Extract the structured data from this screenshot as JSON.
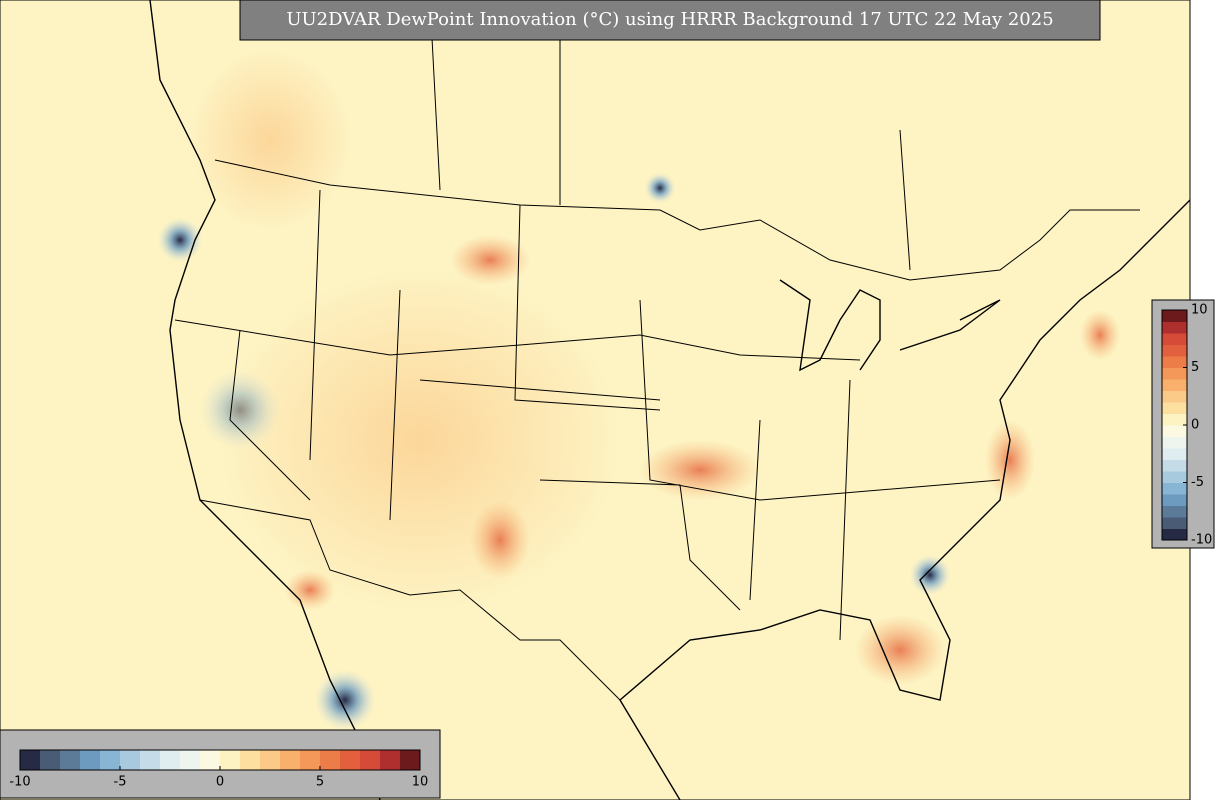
{
  "title": "UU2DVAR DewPoint Innovation (°C) using HRRR Background 17 UTC 22 May 2025",
  "colorbar": {
    "range": [
      -10,
      10
    ],
    "ticks": [
      -10,
      -5,
      0,
      5,
      10
    ],
    "colors": [
      "#262a45",
      "#4a5b76",
      "#5b7b99",
      "#6d9bbf",
      "#89b5d5",
      "#a8cadf",
      "#c5dce8",
      "#dfedf1",
      "#eef5ee",
      "#fbf9e2",
      "#fdf2c2",
      "#fde09f",
      "#fcca88",
      "#f8b06c",
      "#f39858",
      "#ec7d48",
      "#e3603e",
      "#d64a38",
      "#ae2f2e",
      "#6c1a1b"
    ]
  }
}
